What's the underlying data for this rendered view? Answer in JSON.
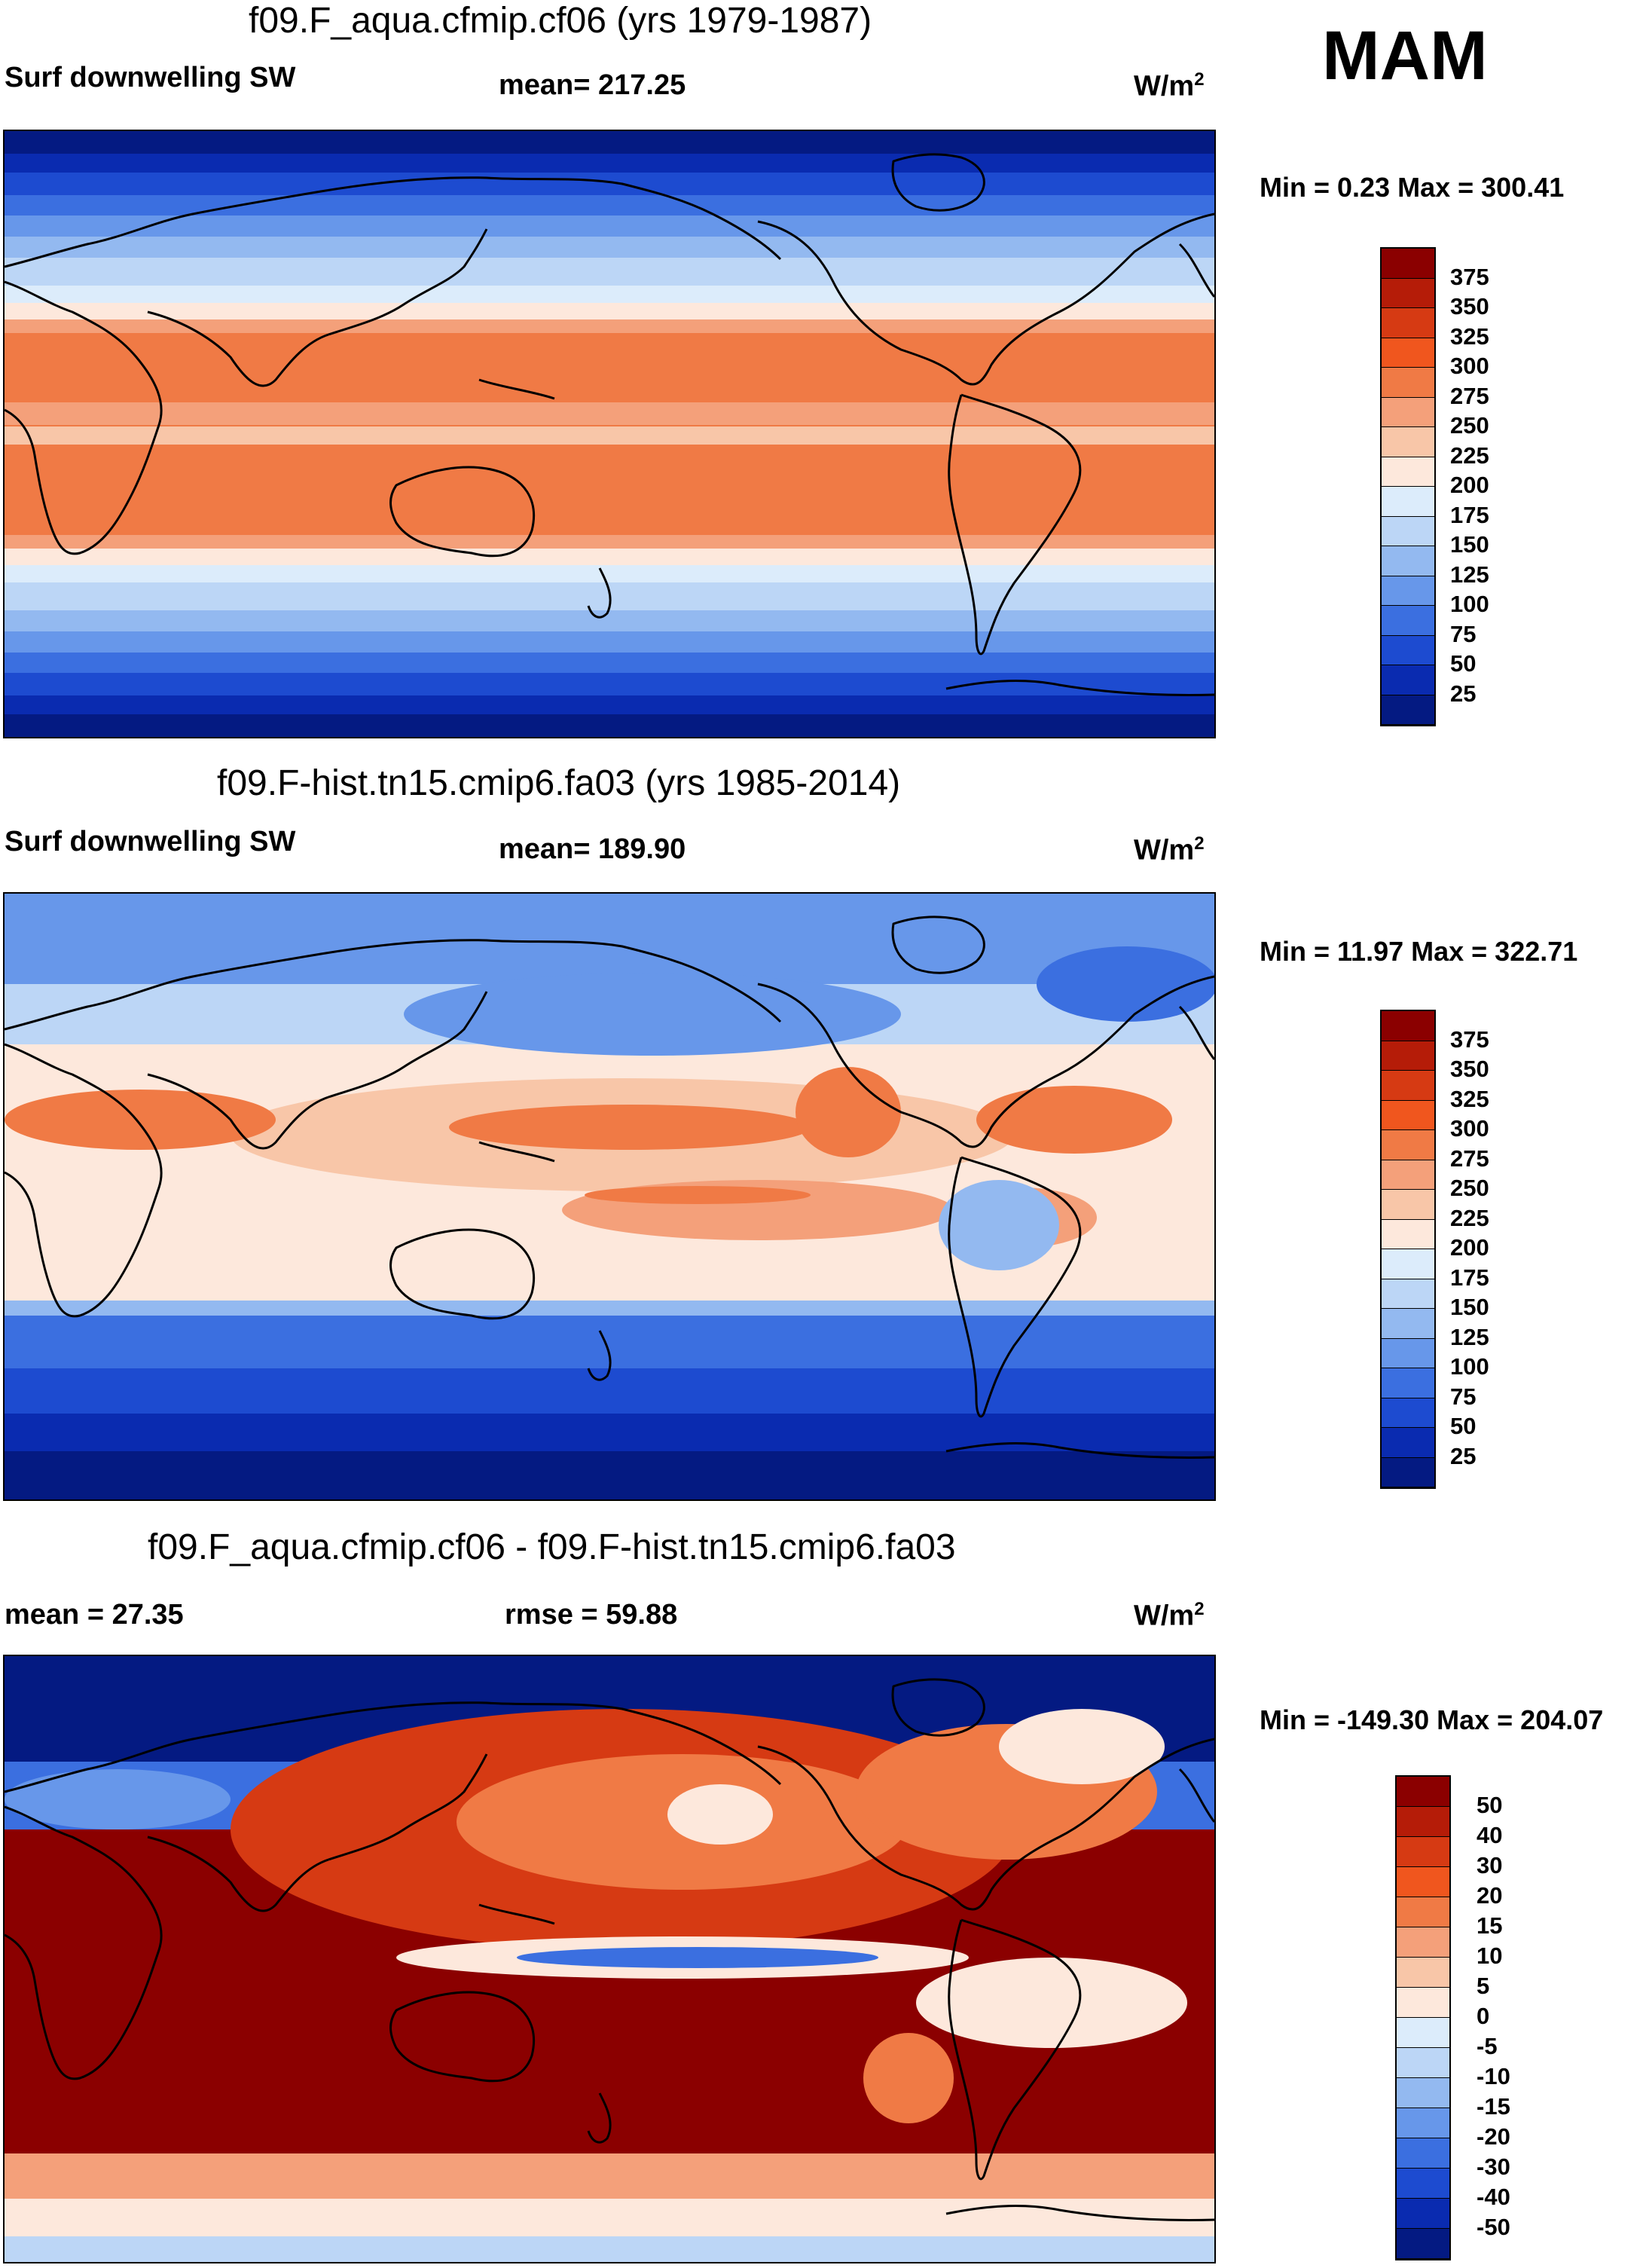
{
  "season": "MAM",
  "units_label": "W/m",
  "units_sup": "2",
  "panels": [
    {
      "title": "f09.F_aqua.cfmip.cf06 (yrs 1979-1987)",
      "left_label": "Surf downwelling SW",
      "center_label": "mean= 217.25",
      "minmax": "Min =   0.23 Max = 300.41"
    },
    {
      "title": "f09.F-hist.tn15.cmip6.fa03 (yrs 1985-2014)",
      "left_label": "Surf downwelling SW",
      "center_label": "mean= 189.90",
      "minmax": "Min =  11.97 Max = 322.71"
    },
    {
      "title": "f09.F_aqua.cfmip.cf06 - f09.F-hist.tn15.cmip6.fa03",
      "left_label": "mean =  27.35",
      "center_label": "rmse =  59.88",
      "minmax": "Min = -149.30 Max = 204.07"
    }
  ],
  "colorbars": {
    "field": {
      "labels": [
        "375",
        "350",
        "325",
        "300",
        "275",
        "250",
        "225",
        "200",
        "175",
        "150",
        "125",
        "100",
        "75",
        "50",
        "25"
      ],
      "colors": [
        "#8b0000",
        "#b51c08",
        "#d63a13",
        "#f0561e",
        "#f07a45",
        "#f4a07a",
        "#f8c6a8",
        "#fde8dc",
        "#dcecfb",
        "#bcd6f6",
        "#93b9f0",
        "#6797ea",
        "#3b6fe0",
        "#1d4bd0",
        "#0a2bb0",
        "#041a82"
      ]
    },
    "diff": {
      "labels": [
        "50",
        "40",
        "30",
        "20",
        "15",
        "10",
        "5",
        "0",
        "-5",
        "-10",
        "-15",
        "-20",
        "-30",
        "-40",
        "-50"
      ],
      "colors": [
        "#8b0000",
        "#b51c08",
        "#d63a13",
        "#f0561e",
        "#f07a45",
        "#f4a07a",
        "#f8c6a8",
        "#fde8dc",
        "#dcecfb",
        "#bcd6f6",
        "#93b9f0",
        "#6797ea",
        "#3b6fe0",
        "#1d4bd0",
        "#0a2bb0",
        "#041a82"
      ]
    }
  }
}
